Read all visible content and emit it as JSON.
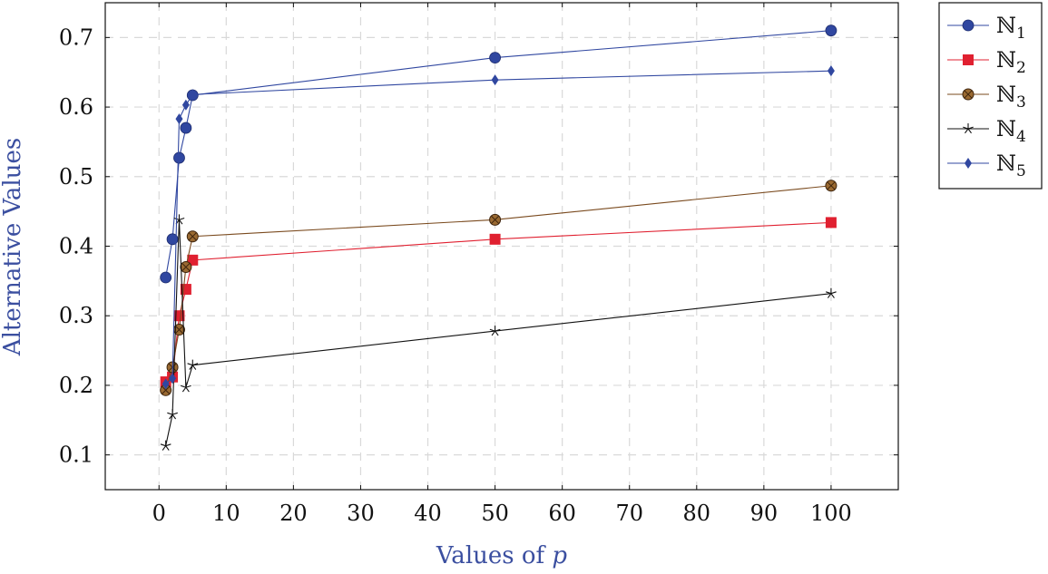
{
  "chart_data": {
    "type": "line",
    "title": "",
    "xlabel": "Values of p",
    "xlabel_text": "Values of ",
    "xlabel_italic": "p",
    "ylabel": "Alternative Values",
    "x": [
      1,
      2,
      3,
      4,
      5,
      50,
      100
    ],
    "xlim": [
      -8,
      110
    ],
    "ylim": [
      0.05,
      0.75
    ],
    "xticks": [
      0,
      10,
      20,
      30,
      40,
      50,
      60,
      70,
      80,
      90,
      100
    ],
    "yticks": [
      0.1,
      0.2,
      0.3,
      0.4,
      0.5,
      0.6,
      0.7
    ],
    "grid": true,
    "legend_position": "outside-top-right",
    "series": [
      {
        "name": "ℕ1",
        "name_base": "ℕ",
        "name_sub": "1",
        "color": "#3047a0",
        "marker": "circle",
        "values": [
          0.355,
          0.41,
          0.527,
          0.57,
          0.617,
          0.671,
          0.71
        ]
      },
      {
        "name": "ℕ2",
        "name_base": "ℕ",
        "name_sub": "2",
        "color": "#e02030",
        "marker": "square",
        "values": [
          0.205,
          0.212,
          0.3,
          0.338,
          0.38,
          0.41,
          0.434
        ]
      },
      {
        "name": "ℕ3",
        "name_base": "ℕ",
        "name_sub": "3",
        "color": "#7a4a1e",
        "marker": "circle-x",
        "values": [
          0.193,
          0.226,
          0.28,
          0.37,
          0.414,
          0.438,
          0.487
        ]
      },
      {
        "name": "ℕ4",
        "name_base": "ℕ",
        "name_sub": "4",
        "color": "#111111",
        "marker": "star",
        "values": [
          0.113,
          0.158,
          0.438,
          0.197,
          0.229,
          0.278,
          0.332
        ]
      },
      {
        "name": "ℕ5",
        "name_base": "ℕ",
        "name_sub": "5",
        "color": "#3047a0",
        "marker": "diamond",
        "values": [
          0.202,
          0.21,
          0.583,
          0.603,
          0.618,
          0.639,
          0.652
        ]
      }
    ]
  }
}
